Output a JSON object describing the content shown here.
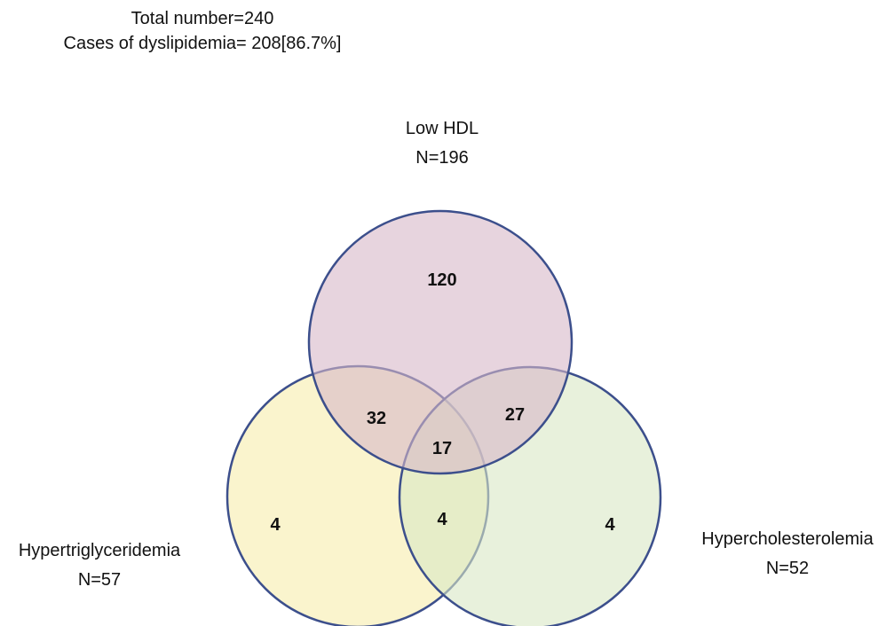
{
  "header": {
    "total_line": "Total number=240",
    "cases_line": "Cases of dyslipidemia= 208[86.7%]"
  },
  "colors": {
    "outline": "#3c4f8c",
    "low_hdl_fill": "#d7b8c8",
    "hypertriglyceridemia_fill": "#f8f0bc",
    "hypercholesterolemia_fill": "#d9e7c4"
  },
  "sets": [
    {
      "id": "low_hdl",
      "name": "Low HDL",
      "n_label": "N=196"
    },
    {
      "id": "hypertriglyceridemia",
      "name": "Hypertriglyceridemia",
      "n_label": "N=57"
    },
    {
      "id": "hypercholesterolemia",
      "name": "Hypercholesterolemia",
      "n_label": "N=52"
    }
  ],
  "regions": {
    "low_hdl_only": "120",
    "low_hdl_and_hypertriglyceridemia": "32",
    "low_hdl_and_hypercholesterolemia": "27",
    "all_three": "17",
    "hypertriglyceridemia_only": "4",
    "hypertriglyceridemia_and_hypercholesterolemia": "4",
    "hypercholesterolemia_only": "4"
  }
}
